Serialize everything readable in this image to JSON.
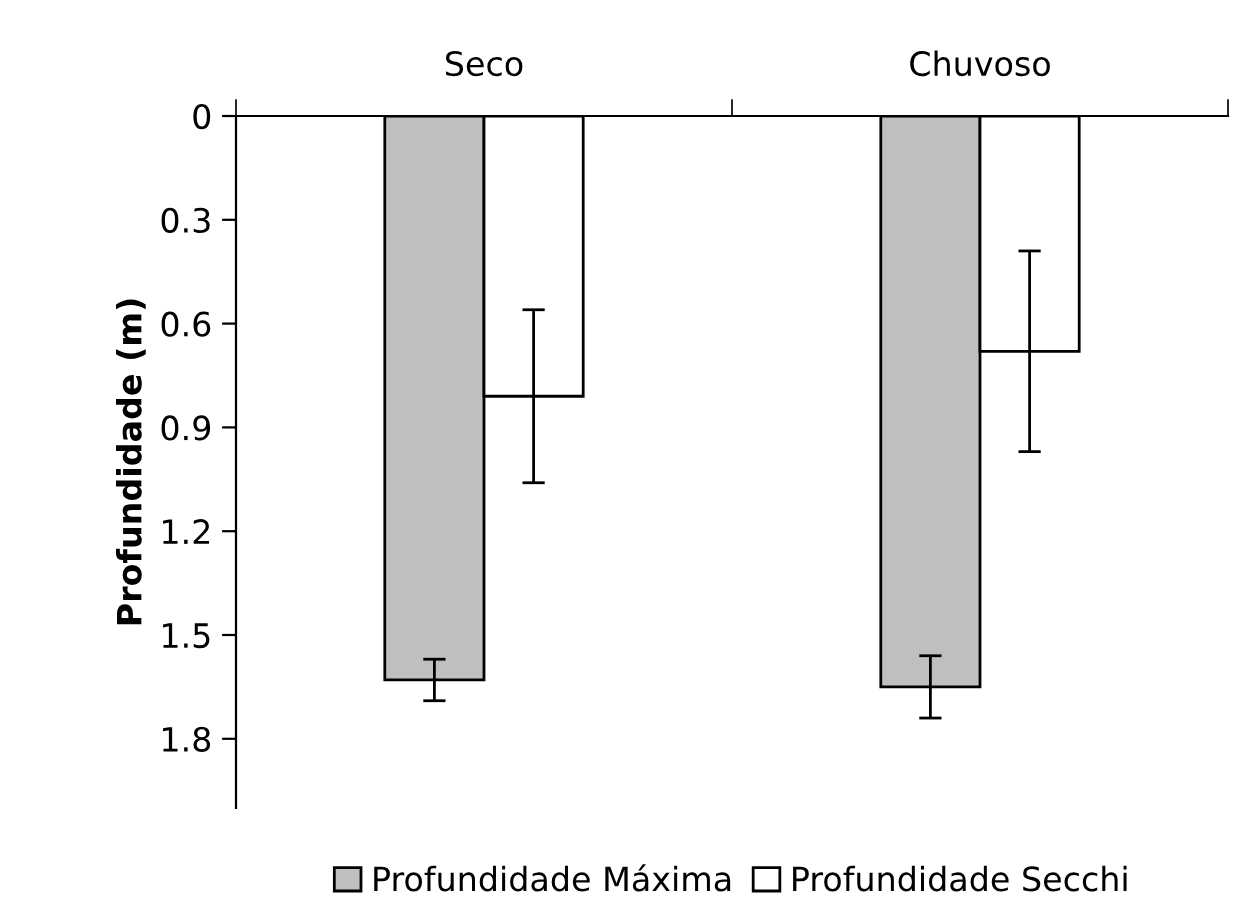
{
  "chart_data": {
    "type": "bar",
    "ylabel": "Profundidade (m)",
    "categories": [
      "Seco",
      "Chuvoso"
    ],
    "series": [
      {
        "name": "Profundidade Máxima",
        "color": "#bfbfbf",
        "values": [
          1.63,
          1.65
        ],
        "errors": [
          0.06,
          0.09
        ]
      },
      {
        "name": "Profundidade Secchi",
        "color": "#ffffff",
        "values": [
          0.81,
          0.68
        ],
        "errors": [
          0.25,
          0.29
        ]
      }
    ],
    "ylim": [
      2.0,
      0
    ],
    "yticks": [
      0,
      0.3,
      0.6,
      0.9,
      1.2,
      1.5,
      1.8
    ],
    "grid": false,
    "legend": "bottom"
  }
}
